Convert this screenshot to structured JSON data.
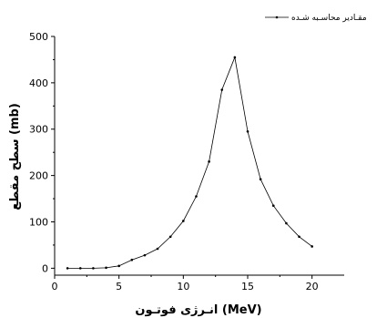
{
  "chart_data": {
    "type": "line",
    "title": "",
    "xlabel": "انـرژی فوتـون (MeV)",
    "ylabel": "سطح مقطع (mb)",
    "xlim": [
      0,
      22.5
    ],
    "ylim": [
      -15,
      500
    ],
    "xticks": [
      0,
      5,
      10,
      15,
      20
    ],
    "yticks": [
      0,
      100,
      200,
      300,
      400,
      500
    ],
    "grid": false,
    "legend_position": "top-right",
    "series": [
      {
        "name": "مقـادیر محاسـبه شـده",
        "color": "#000000",
        "x": [
          1,
          2,
          3,
          4,
          5,
          6,
          7,
          8,
          9,
          10,
          11,
          12,
          13,
          14,
          15,
          16,
          17,
          18,
          19,
          20
        ],
        "y": [
          0,
          0,
          0,
          1,
          5,
          18,
          28,
          42,
          68,
          102,
          155,
          230,
          385,
          455,
          295,
          192,
          135,
          97,
          68,
          47
        ]
      }
    ]
  }
}
